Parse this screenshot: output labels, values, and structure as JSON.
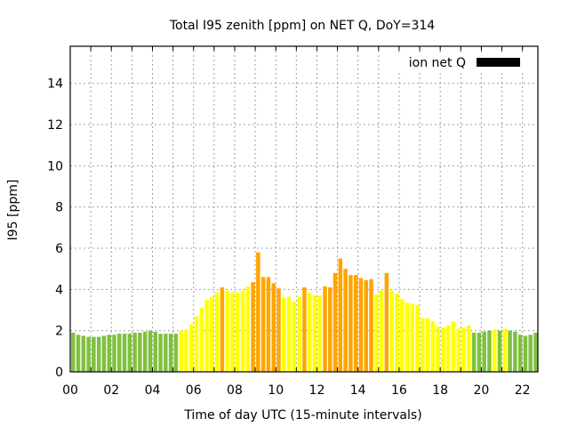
{
  "chart_data": {
    "type": "bar",
    "title": "Total I95 zenith [ppm] on NET Q, DoY=314",
    "xlabel": "Time of day UTC (15-minute intervals)",
    "ylabel": "I95 [ppm]",
    "ylim": [
      0,
      15.8
    ],
    "xlim": [
      0,
      22.75
    ],
    "grid": true,
    "legend": {
      "position": "top-right",
      "entries": [
        {
          "label": "ion net Q",
          "color": "#000000"
        }
      ]
    },
    "x_tick_labels": [
      "00",
      "02",
      "04",
      "06",
      "08",
      "10",
      "12",
      "14",
      "16",
      "18",
      "20",
      "22"
    ],
    "x_ticks": [
      0,
      2,
      4,
      6,
      8,
      10,
      12,
      14,
      16,
      18,
      20,
      22
    ],
    "y_tick_labels": [
      "0",
      "2",
      "4",
      "6",
      "8",
      "10",
      "12",
      "14"
    ],
    "y_ticks": [
      0,
      2,
      4,
      6,
      8,
      10,
      12,
      14
    ],
    "interval_hours": 0.25,
    "colors": {
      "low": "#80c040",
      "medium": "#ffff00",
      "high": "#ffa500"
    },
    "values": [
      1.9,
      1.8,
      1.75,
      1.7,
      1.7,
      1.7,
      1.75,
      1.8,
      1.8,
      1.85,
      1.85,
      1.85,
      1.9,
      1.9,
      1.95,
      2.0,
      1.95,
      1.85,
      1.85,
      1.85,
      1.85,
      2.0,
      2.05,
      2.3,
      2.7,
      3.1,
      3.5,
      3.65,
      3.85,
      4.1,
      3.95,
      3.85,
      3.85,
      3.95,
      4.15,
      4.35,
      5.8,
      4.6,
      4.6,
      4.3,
      4.05,
      3.6,
      3.65,
      3.4,
      3.65,
      4.1,
      3.85,
      3.7,
      3.7,
      4.15,
      4.1,
      4.8,
      5.5,
      5.0,
      4.7,
      4.7,
      4.55,
      4.45,
      4.5,
      3.75,
      3.95,
      4.8,
      3.95,
      3.8,
      3.55,
      3.35,
      3.3,
      3.25,
      2.6,
      2.6,
      2.45,
      2.2,
      2.15,
      2.25,
      2.45,
      2.1,
      2.15,
      2.25,
      1.9,
      1.9,
      1.95,
      2.0,
      2.05,
      2.0,
      2.1,
      2.0,
      1.95,
      1.8,
      1.75,
      1.8,
      1.9
    ],
    "levels": [
      "low",
      "low",
      "low",
      "low",
      "low",
      "low",
      "low",
      "low",
      "low",
      "low",
      "low",
      "low",
      "low",
      "low",
      "low",
      "low",
      "low",
      "low",
      "low",
      "low",
      "low",
      "medium",
      "medium",
      "medium",
      "medium",
      "medium",
      "medium",
      "medium",
      "medium",
      "high",
      "medium",
      "medium",
      "medium",
      "medium",
      "medium",
      "high",
      "high",
      "high",
      "high",
      "high",
      "high",
      "medium",
      "medium",
      "medium",
      "medium",
      "high",
      "medium",
      "medium",
      "medium",
      "high",
      "high",
      "high",
      "high",
      "high",
      "high",
      "high",
      "high",
      "high",
      "high",
      "medium",
      "medium",
      "high",
      "medium",
      "medium",
      "medium",
      "medium",
      "medium",
      "medium",
      "medium",
      "medium",
      "medium",
      "medium",
      "medium",
      "medium",
      "medium",
      "medium",
      "medium",
      "medium",
      "low",
      "low",
      "low",
      "low",
      "medium",
      "low",
      "medium",
      "low",
      "low",
      "low",
      "low",
      "low",
      "low"
    ]
  }
}
